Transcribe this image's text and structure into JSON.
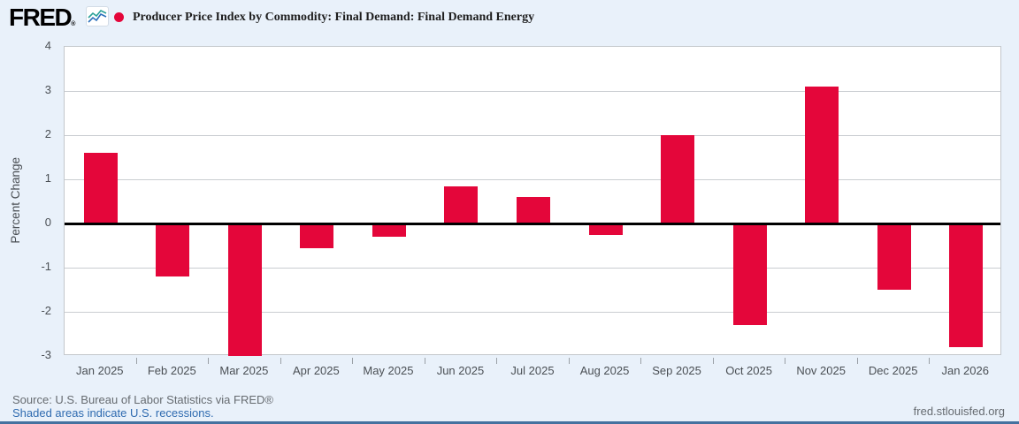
{
  "header": {
    "logo_text": "FRED",
    "registered_mark": "®",
    "title": "Producer Price Index by Commodity: Final Demand: Final Demand Energy",
    "legend_marker_color": "#e4063a"
  },
  "chart_data": {
    "type": "bar",
    "title": "Producer Price Index by Commodity: Final Demand: Final Demand Energy",
    "xlabel": "",
    "ylabel": "Percent Change",
    "categories": [
      "Jan 2025",
      "Feb 2025",
      "Mar 2025",
      "Apr 2025",
      "May 2025",
      "Jun 2025",
      "Jul 2025",
      "Aug 2025",
      "Sep 2025",
      "Oct 2025",
      "Nov 2025",
      "Dec 2025",
      "Jan 2026"
    ],
    "values": [
      1.6,
      -1.2,
      -3.0,
      -0.55,
      -0.3,
      0.85,
      0.6,
      -0.25,
      2.0,
      -2.3,
      3.1,
      -1.5,
      -2.8
    ],
    "yticks": [
      4,
      3,
      2,
      1,
      0,
      -1,
      -2,
      -3
    ],
    "ylim": [
      -3,
      4
    ],
    "bar_color": "#e4063a",
    "grid": true,
    "zero_line": true,
    "legend_position": "top-left",
    "plot_background": "#ffffff"
  },
  "footer": {
    "source_line": "Source: U.S. Bureau of Labor Statistics via FRED®",
    "recession_note": "Shaded areas indicate U.S. recessions.",
    "site_link": "fred.stlouisfed.org"
  }
}
